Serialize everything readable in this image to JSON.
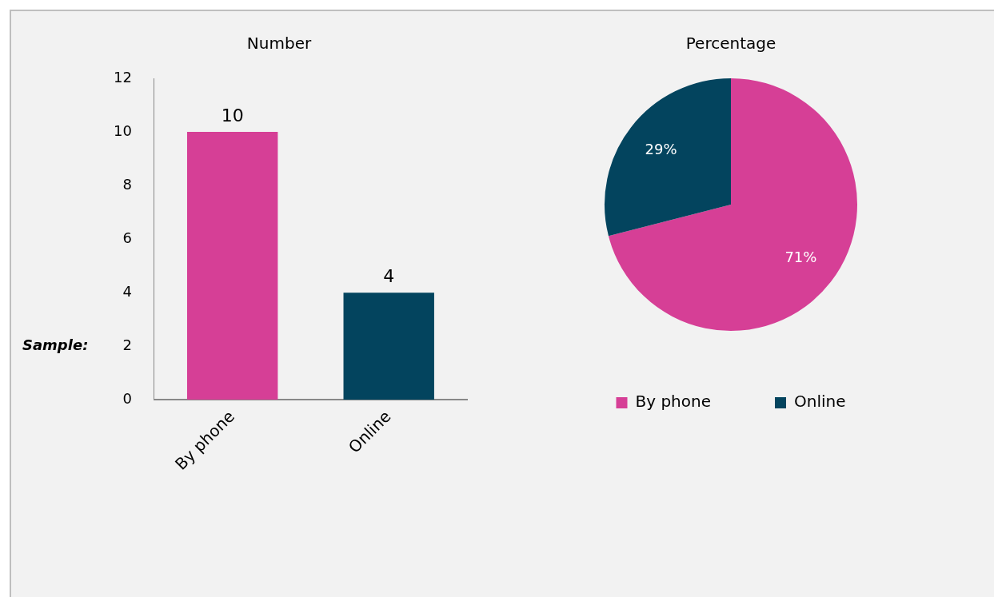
{
  "chart_data": [
    {
      "type": "bar",
      "title": "Number",
      "categories": [
        "By phone",
        "Online"
      ],
      "colors": [
        "#d63f96",
        "#03445e"
      ],
      "values": [
        10,
        4
      ],
      "ylim": [
        0,
        12
      ],
      "yticks": [
        0,
        2,
        4,
        6,
        8,
        10,
        12
      ],
      "grid": false,
      "legend": false,
      "data_labels": true,
      "annotations": [
        "Sample:"
      ]
    },
    {
      "type": "pie",
      "title": "Percentage",
      "categories": [
        "By phone",
        "Online"
      ],
      "values": [
        71,
        29
      ],
      "colors": [
        "#d63f96",
        "#03445e"
      ],
      "value_labels": [
        "71%",
        "29%"
      ],
      "legend": "bottom"
    }
  ]
}
